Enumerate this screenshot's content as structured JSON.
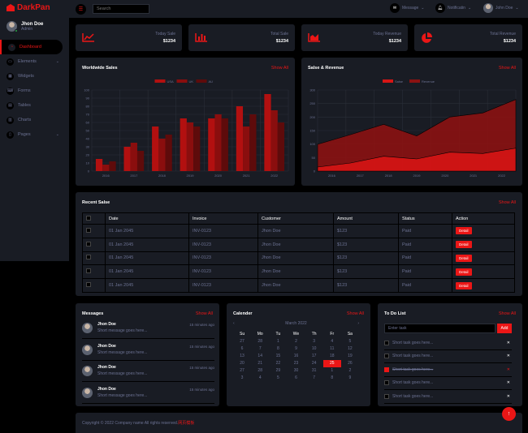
{
  "brand": {
    "name": "DarkPan"
  },
  "user": {
    "name": "Jhon Doe",
    "role": "Admin"
  },
  "sidebar": {
    "items": [
      {
        "label": "Dashboard",
        "icon": "gauge-icon"
      },
      {
        "label": "Elements",
        "icon": "laptop-icon"
      },
      {
        "label": "Widgets",
        "icon": "th-icon"
      },
      {
        "label": "Forms",
        "icon": "keyboard-icon"
      },
      {
        "label": "Tables",
        "icon": "table-icon"
      },
      {
        "label": "Charts",
        "icon": "chart-icon"
      },
      {
        "label": "Pages",
        "icon": "file-icon"
      }
    ]
  },
  "topbar": {
    "search_placeholder": "Search",
    "message": "Message",
    "notification": "Notificatin",
    "user": "John Doe"
  },
  "stats": [
    {
      "label": "Today Sale",
      "value": "$1234",
      "icon": "line-chart-icon"
    },
    {
      "label": "Total Sale",
      "value": "$1234",
      "icon": "bar-chart-icon"
    },
    {
      "label": "Today Revenue",
      "value": "$1234",
      "icon": "area-chart-icon"
    },
    {
      "label": "Total Revenue",
      "value": "$1234",
      "icon": "pie-chart-icon"
    }
  ],
  "worldwide": {
    "title": "Worldwide Sales",
    "show_all": "Show All"
  },
  "salesrev": {
    "title": "Salse & Revenue",
    "show_all": "Show All"
  },
  "chart_data": [
    {
      "type": "bar",
      "categories": [
        "2016",
        "2017",
        "2018",
        "2019",
        "2020",
        "2021",
        "2022"
      ],
      "series": [
        {
          "name": "USA",
          "values": [
            15,
            30,
            55,
            65,
            65,
            80,
            95
          ],
          "color": "#b21010"
        },
        {
          "name": "UK",
          "values": [
            8,
            35,
            40,
            60,
            70,
            55,
            75
          ],
          "color": "#8a0e0e"
        },
        {
          "name": "AU",
          "values": [
            12,
            25,
            45,
            55,
            65,
            70,
            60
          ],
          "color": "#5e0b0b"
        }
      ],
      "ylim": [
        0,
        100
      ],
      "yticks": [
        0,
        10,
        20,
        30,
        40,
        50,
        60,
        70,
        80,
        90,
        100
      ],
      "legend": "top-center",
      "grid": true
    },
    {
      "type": "area",
      "categories": [
        "2016",
        "2017",
        "2018",
        "2019",
        "2020",
        "2021",
        "2022"
      ],
      "series": [
        {
          "name": "Salse",
          "values": [
            15,
            30,
            55,
            45,
            70,
            65,
            85
          ],
          "color": "#d61515"
        },
        {
          "name": "Revenue",
          "values": [
            99,
            135,
            173,
            130,
            200,
            215,
            265
          ],
          "color": "#8b1212"
        }
      ],
      "ylim": [
        0,
        300
      ],
      "yticks": [
        0,
        50,
        100,
        150,
        200,
        250,
        300
      ],
      "legend": "top-center",
      "grid": true
    }
  ],
  "recent": {
    "title": "Recent Salse",
    "show_all": "Show All",
    "headers": [
      "Date",
      "Invoice",
      "Customer",
      "Amount",
      "Status",
      "Action"
    ],
    "rows": [
      [
        "01 Jan 2045",
        "INV-0123",
        "Jhon Doe",
        "$123",
        "Paid",
        "Detail"
      ],
      [
        "01 Jan 2045",
        "INV-0123",
        "Jhon Doe",
        "$123",
        "Paid",
        "Detail"
      ],
      [
        "01 Jan 2045",
        "INV-0123",
        "Jhon Doe",
        "$123",
        "Paid",
        "Detail"
      ],
      [
        "01 Jan 2045",
        "INV-0123",
        "Jhon Doe",
        "$123",
        "Paid",
        "Detail"
      ],
      [
        "01 Jan 2045",
        "INV-0123",
        "Jhon Doe",
        "$123",
        "Paid",
        "Detail"
      ]
    ]
  },
  "messages": {
    "title": "Messages",
    "show_all": "Show All",
    "items": [
      {
        "name": "Jhon Doe",
        "time": "15 minutes ago",
        "text": "Short message goes here..."
      },
      {
        "name": "Jhon Doe",
        "time": "15 minutes ago",
        "text": "Short message goes here..."
      },
      {
        "name": "Jhon Doe",
        "time": "15 minutes ago",
        "text": "Short message goes here..."
      },
      {
        "name": "Jhon Doe",
        "time": "15 minutes ago",
        "text": "Short message goes here..."
      }
    ]
  },
  "calendar": {
    "title": "Calender",
    "show_all": "Show All",
    "month": "March 2022",
    "days_of_week": [
      "Su",
      "Mo",
      "Tu",
      "We",
      "Th",
      "Fr",
      "Sa"
    ],
    "weeks": [
      [
        "27",
        "28",
        "1",
        "2",
        "3",
        "4",
        "5"
      ],
      [
        "6",
        "7",
        "8",
        "9",
        "10",
        "11",
        "12"
      ],
      [
        "13",
        "14",
        "15",
        "16",
        "17",
        "18",
        "19"
      ],
      [
        "20",
        "21",
        "22",
        "23",
        "24",
        "25",
        "26"
      ],
      [
        "27",
        "28",
        "29",
        "30",
        "31",
        "1",
        "2"
      ],
      [
        "3",
        "4",
        "5",
        "6",
        "7",
        "8",
        "9"
      ]
    ],
    "selected": "25"
  },
  "todo": {
    "title": "To Do List",
    "show_all": "Show All",
    "input_placeholder": "Enter task",
    "add_label": "Add",
    "items": [
      {
        "text": "Short task goes here...",
        "done": false
      },
      {
        "text": "Short task goes here...",
        "done": false
      },
      {
        "text": "Short task goes here...",
        "done": true
      },
      {
        "text": "Short task goes here...",
        "done": false
      },
      {
        "text": "Short task goes here...",
        "done": false
      }
    ]
  },
  "footer": {
    "text": "Copyright © 2022 Company name All rights reserved.",
    "link": "网页模板"
  },
  "colors": {
    "accent": "#eb1616",
    "card": "#191c24",
    "bg": "#000000"
  }
}
